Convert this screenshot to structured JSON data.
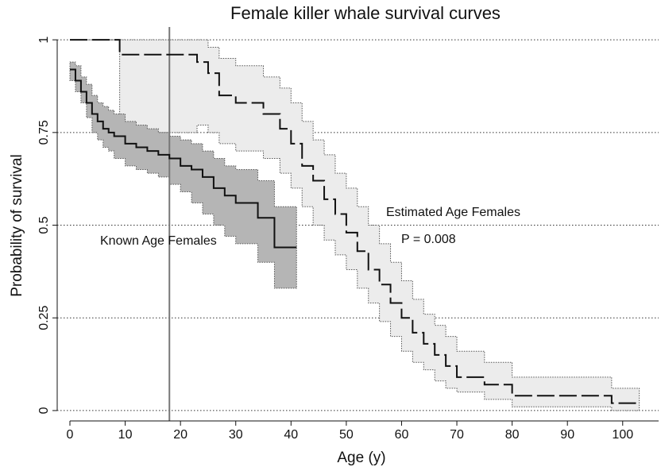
{
  "chart_data": {
    "type": "step",
    "title": "Female killer whale survival curves",
    "x_label": "Age (y)",
    "y_label": "Probability of survival",
    "xlim": [
      -2.3,
      106.5
    ],
    "ylim": [
      -0.028,
      1.026
    ],
    "xticks": [
      0,
      10,
      20,
      30,
      40,
      50,
      60,
      70,
      80,
      90,
      100
    ],
    "yticks": [
      0,
      0.25,
      0.5,
      0.75,
      1
    ],
    "grid": true,
    "vline": 18,
    "vline_color": "#777777",
    "annotation": "P = 0.008",
    "series": [
      {
        "name": "Known Age Females",
        "color": "#111111",
        "dash": false,
        "band_color": "#b5b5b5",
        "x": [
          0,
          1,
          2,
          3,
          4,
          5,
          6,
          7,
          8,
          10,
          12,
          14,
          16,
          18,
          20,
          22,
          24,
          26,
          28,
          30,
          34,
          37,
          41
        ],
        "y": [
          0.92,
          0.89,
          0.86,
          0.83,
          0.8,
          0.78,
          0.76,
          0.75,
          0.74,
          0.72,
          0.71,
          0.7,
          0.69,
          0.68,
          0.66,
          0.65,
          0.63,
          0.6,
          0.58,
          0.56,
          0.52,
          0.44,
          0.44
        ],
        "lower": [
          0.89,
          0.86,
          0.83,
          0.79,
          0.75,
          0.73,
          0.71,
          0.7,
          0.68,
          0.66,
          0.65,
          0.64,
          0.63,
          0.61,
          0.59,
          0.56,
          0.53,
          0.5,
          0.47,
          0.45,
          0.4,
          0.33,
          0.33
        ],
        "upper": [
          0.94,
          0.93,
          0.9,
          0.88,
          0.85,
          0.83,
          0.82,
          0.81,
          0.8,
          0.78,
          0.77,
          0.76,
          0.75,
          0.74,
          0.73,
          0.72,
          0.7,
          0.68,
          0.66,
          0.65,
          0.62,
          0.55,
          0.55
        ]
      },
      {
        "name": "Estimated Age Females",
        "color": "#111111",
        "dash": true,
        "band_color": "#ececec",
        "x": [
          0,
          9,
          23,
          25,
          27,
          30,
          35,
          38,
          40,
          42,
          44,
          46,
          48,
          50,
          52,
          54,
          56,
          58,
          60,
          62,
          64,
          66,
          68,
          70,
          75,
          80,
          98,
          103
        ],
        "y": [
          1,
          0.96,
          0.94,
          0.91,
          0.85,
          0.83,
          0.8,
          0.76,
          0.72,
          0.66,
          0.62,
          0.57,
          0.53,
          0.48,
          0.43,
          0.38,
          0.34,
          0.29,
          0.25,
          0.21,
          0.18,
          0.15,
          0.12,
          0.09,
          0.07,
          0.04,
          0.02,
          0.02
        ],
        "lower": [
          1,
          0.75,
          0.77,
          0.75,
          0.72,
          0.7,
          0.68,
          0.64,
          0.6,
          0.55,
          0.5,
          0.46,
          0.42,
          0.38,
          0.33,
          0.29,
          0.24,
          0.2,
          0.16,
          0.13,
          0.11,
          0.08,
          0.06,
          0.05,
          0.03,
          0.01,
          0,
          0
        ],
        "upper": [
          1,
          1,
          1,
          0.98,
          0.95,
          0.93,
          0.9,
          0.87,
          0.83,
          0.78,
          0.73,
          0.69,
          0.64,
          0.6,
          0.55,
          0.5,
          0.45,
          0.4,
          0.35,
          0.3,
          0.26,
          0.23,
          0.2,
          0.16,
          0.13,
          0.09,
          0.06,
          0.06
        ]
      }
    ]
  }
}
